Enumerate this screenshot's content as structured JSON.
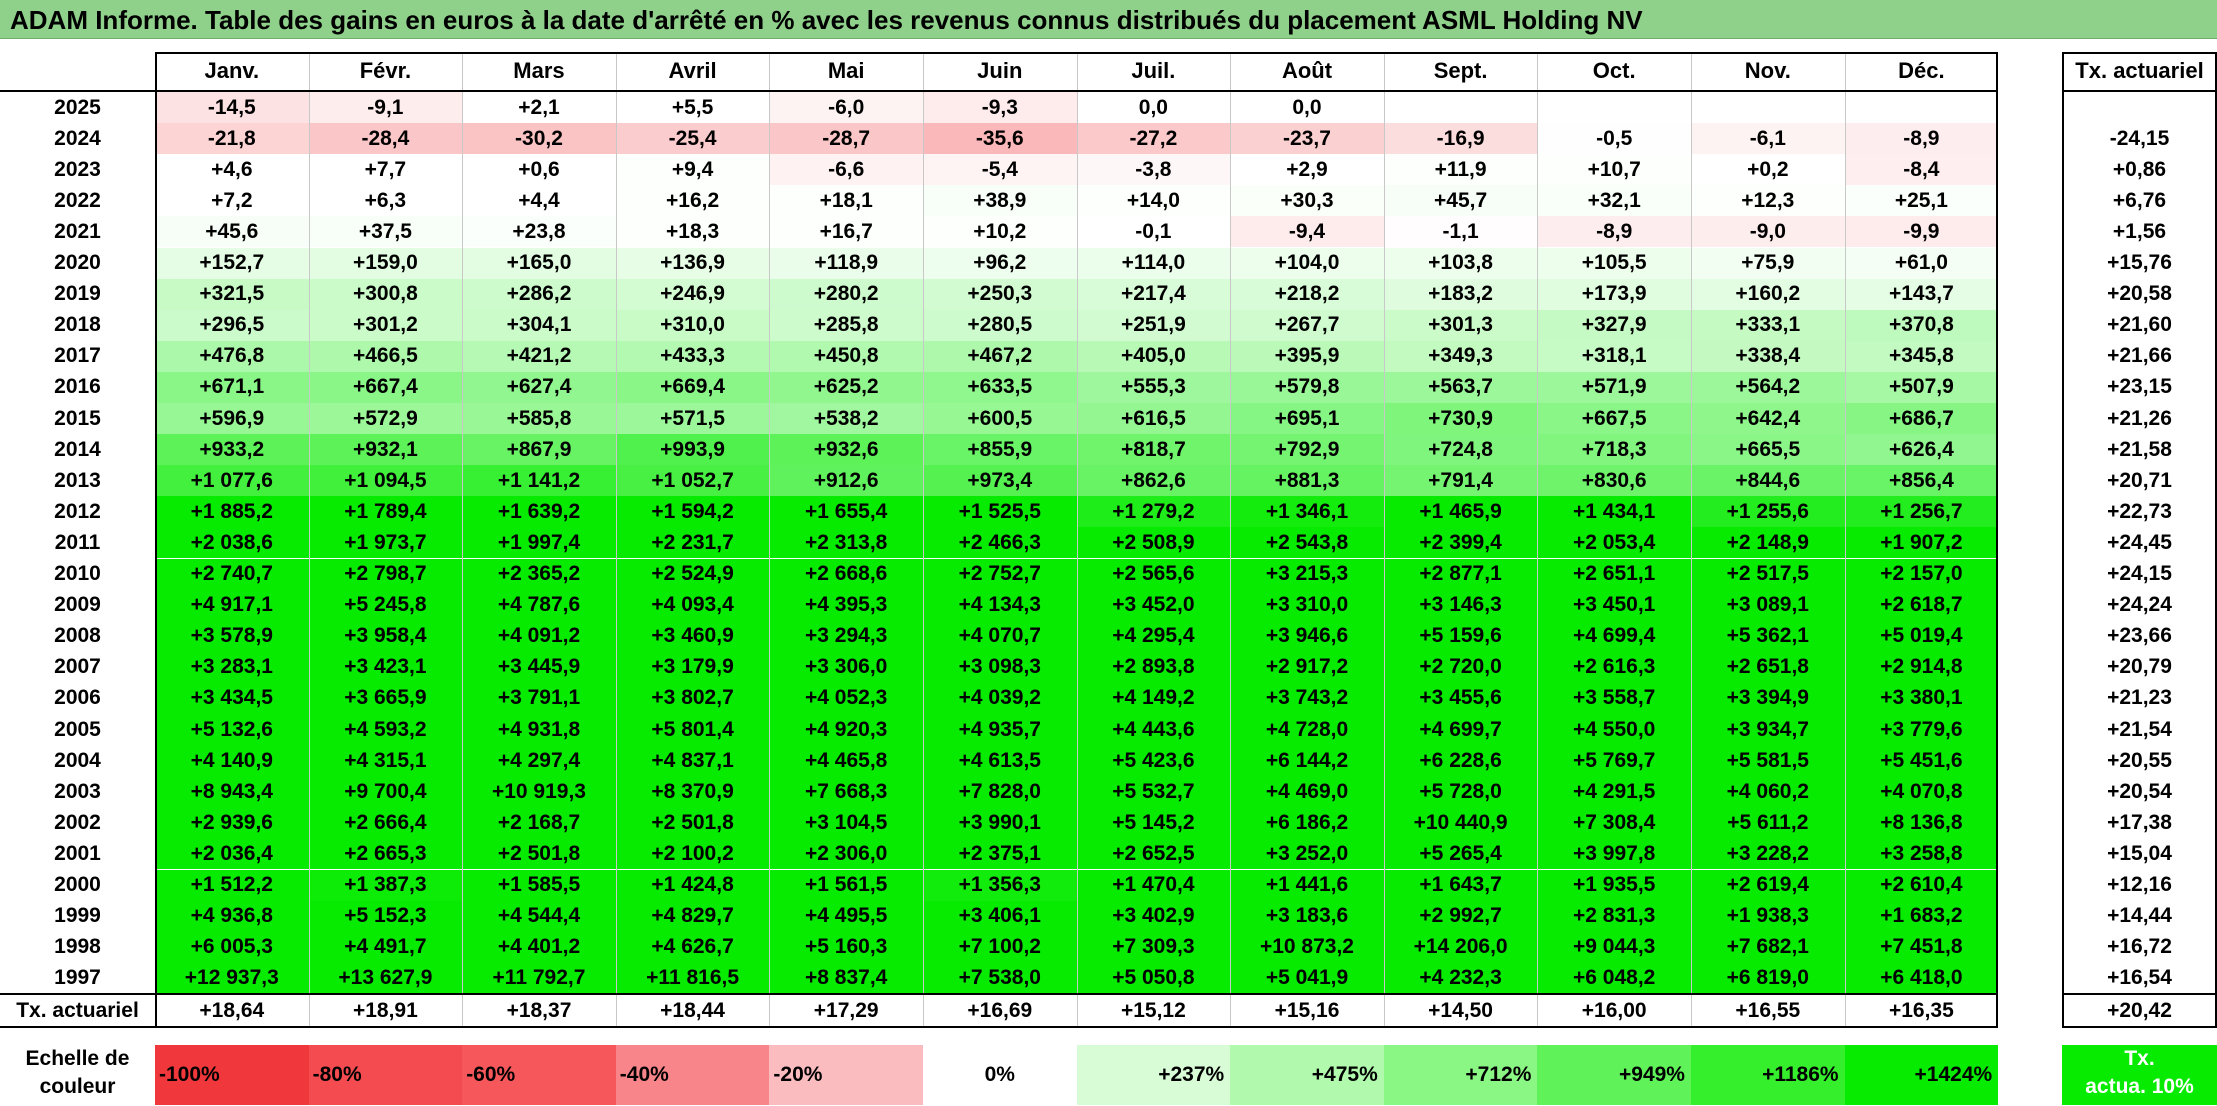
{
  "title": "ADAM Informe. Table des gains en euros à la date d'arrêté en % avec les revenus connus distribués du placement ASML Holding NV",
  "months": [
    "Janv.",
    "Févr.",
    "Mars",
    "Avril",
    "Mai",
    "Juin",
    "Juil.",
    "Août",
    "Sept.",
    "Oct.",
    "Nov.",
    "Déc."
  ],
  "annual_header": "Tx. actuariel",
  "footer_label": "Tx. actuariel",
  "footer_values": [
    "+18,64",
    "+18,91",
    "+18,37",
    "+18,44",
    "+17,29",
    "+16,69",
    "+15,12",
    "+15,16",
    "+14,50",
    "+16,00",
    "+16,55",
    "+16,35"
  ],
  "footer_total": "+20,42",
  "legend": {
    "label_line1": "Echelle de",
    "label_line2": "couleur",
    "items": [
      "-100%",
      "-80%",
      "-60%",
      "-40%",
      "-20%",
      "0%",
      "+237%",
      "+475%",
      "+712%",
      "+949%",
      "+1186%",
      "+1424%"
    ],
    "colors": [
      "#f0383c",
      "#f34b4f",
      "#f5575b",
      "#f88589",
      "#fbbcbf",
      "#ffffff",
      "#d8fcd6",
      "#b1f9ad",
      "#8af684",
      "#5ff259",
      "#35ef2d",
      "#06eb00"
    ],
    "tx_line1": "Tx.",
    "tx_line2": "actua. 10%",
    "tx_color": "#06eb00"
  },
  "chart_data": {
    "type": "heatmap",
    "title": "ADAM Informe. Table des gains en euros à la date d'arrêté en % avec les revenus connus distribués du placement ASML Holding NV",
    "x": [
      "Janv.",
      "Févr.",
      "Mars",
      "Avril",
      "Mai",
      "Juin",
      "Juil.",
      "Août",
      "Sept.",
      "Oct.",
      "Nov.",
      "Déc."
    ],
    "rows": [
      {
        "year": "2025",
        "values": [
          "-14,5",
          "-9,1",
          "+2,1",
          "+5,5",
          "-6,0",
          "-9,3",
          "0,0",
          "0,0",
          "",
          "",
          "",
          ""
        ],
        "tx": ""
      },
      {
        "year": "2024",
        "values": [
          "-21,8",
          "-28,4",
          "-30,2",
          "-25,4",
          "-28,7",
          "-35,6",
          "-27,2",
          "-23,7",
          "-16,9",
          "-0,5",
          "-6,1",
          "-8,9"
        ],
        "tx": "-24,15"
      },
      {
        "year": "2023",
        "values": [
          "+4,6",
          "+7,7",
          "+0,6",
          "+9,4",
          "-6,6",
          "-5,4",
          "-3,8",
          "+2,9",
          "+11,9",
          "+10,7",
          "+0,2",
          "-8,4"
        ],
        "tx": "+0,86"
      },
      {
        "year": "2022",
        "values": [
          "+7,2",
          "+6,3",
          "+4,4",
          "+16,2",
          "+18,1",
          "+38,9",
          "+14,0",
          "+30,3",
          "+45,7",
          "+32,1",
          "+12,3",
          "+25,1"
        ],
        "tx": "+6,76"
      },
      {
        "year": "2021",
        "values": [
          "+45,6",
          "+37,5",
          "+23,8",
          "+18,3",
          "+16,7",
          "+10,2",
          "-0,1",
          "-9,4",
          "-1,1",
          "-8,9",
          "-9,0",
          "-9,9"
        ],
        "tx": "+1,56"
      },
      {
        "year": "2020",
        "values": [
          "+152,7",
          "+159,0",
          "+165,0",
          "+136,9",
          "+118,9",
          "+96,2",
          "+114,0",
          "+104,0",
          "+103,8",
          "+105,5",
          "+75,9",
          "+61,0"
        ],
        "tx": "+15,76"
      },
      {
        "year": "2019",
        "values": [
          "+321,5",
          "+300,8",
          "+286,2",
          "+246,9",
          "+280,2",
          "+250,3",
          "+217,4",
          "+218,2",
          "+183,2",
          "+173,9",
          "+160,2",
          "+143,7"
        ],
        "tx": "+20,58"
      },
      {
        "year": "2018",
        "values": [
          "+296,5",
          "+301,2",
          "+304,1",
          "+310,0",
          "+285,8",
          "+280,5",
          "+251,9",
          "+267,7",
          "+301,3",
          "+327,9",
          "+333,1",
          "+370,8"
        ],
        "tx": "+21,60"
      },
      {
        "year": "2017",
        "values": [
          "+476,8",
          "+466,5",
          "+421,2",
          "+433,3",
          "+450,8",
          "+467,2",
          "+405,0",
          "+395,9",
          "+349,3",
          "+318,1",
          "+338,4",
          "+345,8"
        ],
        "tx": "+21,66"
      },
      {
        "year": "2016",
        "values": [
          "+671,1",
          "+667,4",
          "+627,4",
          "+669,4",
          "+625,2",
          "+633,5",
          "+555,3",
          "+579,8",
          "+563,7",
          "+571,9",
          "+564,2",
          "+507,9"
        ],
        "tx": "+23,15"
      },
      {
        "year": "2015",
        "values": [
          "+596,9",
          "+572,9",
          "+585,8",
          "+571,5",
          "+538,2",
          "+600,5",
          "+616,5",
          "+695,1",
          "+730,9",
          "+667,5",
          "+642,4",
          "+686,7"
        ],
        "tx": "+21,26"
      },
      {
        "year": "2014",
        "values": [
          "+933,2",
          "+932,1",
          "+867,9",
          "+993,9",
          "+932,6",
          "+855,9",
          "+818,7",
          "+792,9",
          "+724,8",
          "+718,3",
          "+665,5",
          "+626,4"
        ],
        "tx": "+21,58"
      },
      {
        "year": "2013",
        "values": [
          "+1 077,6",
          "+1 094,5",
          "+1 141,2",
          "+1 052,7",
          "+912,6",
          "+973,4",
          "+862,6",
          "+881,3",
          "+791,4",
          "+830,6",
          "+844,6",
          "+856,4"
        ],
        "tx": "+20,71"
      },
      {
        "year": "2012",
        "values": [
          "+1 885,2",
          "+1 789,4",
          "+1 639,2",
          "+1 594,2",
          "+1 655,4",
          "+1 525,5",
          "+1 279,2",
          "+1 346,1",
          "+1 465,9",
          "+1 434,1",
          "+1 255,6",
          "+1 256,7"
        ],
        "tx": "+22,73"
      },
      {
        "year": "2011",
        "values": [
          "+2 038,6",
          "+1 973,7",
          "+1 997,4",
          "+2 231,7",
          "+2 313,8",
          "+2 466,3",
          "+2 508,9",
          "+2 543,8",
          "+2 399,4",
          "+2 053,4",
          "+2 148,9",
          "+1 907,2"
        ],
        "tx": "+24,45"
      },
      {
        "year": "2010",
        "values": [
          "+2 740,7",
          "+2 798,7",
          "+2 365,2",
          "+2 524,9",
          "+2 668,6",
          "+2 752,7",
          "+2 565,6",
          "+3 215,3",
          "+2 877,1",
          "+2 651,1",
          "+2 517,5",
          "+2 157,0"
        ],
        "tx": "+24,15"
      },
      {
        "year": "2009",
        "values": [
          "+4 917,1",
          "+5 245,8",
          "+4 787,6",
          "+4 093,4",
          "+4 395,3",
          "+4 134,3",
          "+3 452,0",
          "+3 310,0",
          "+3 146,3",
          "+3 450,1",
          "+3 089,1",
          "+2 618,7"
        ],
        "tx": "+24,24"
      },
      {
        "year": "2008",
        "values": [
          "+3 578,9",
          "+3 958,4",
          "+4 091,2",
          "+3 460,9",
          "+3 294,3",
          "+4 070,7",
          "+4 295,4",
          "+3 946,6",
          "+5 159,6",
          "+4 699,4",
          "+5 362,1",
          "+5 019,4"
        ],
        "tx": "+23,66"
      },
      {
        "year": "2007",
        "values": [
          "+3 283,1",
          "+3 423,1",
          "+3 445,9",
          "+3 179,9",
          "+3 306,0",
          "+3 098,3",
          "+2 893,8",
          "+2 917,2",
          "+2 720,0",
          "+2 616,3",
          "+2 651,8",
          "+2 914,8"
        ],
        "tx": "+20,79"
      },
      {
        "year": "2006",
        "values": [
          "+3 434,5",
          "+3 665,9",
          "+3 791,1",
          "+3 802,7",
          "+4 052,3",
          "+4 039,2",
          "+4 149,2",
          "+3 743,2",
          "+3 455,6",
          "+3 558,7",
          "+3 394,9",
          "+3 380,1"
        ],
        "tx": "+21,23"
      },
      {
        "year": "2005",
        "values": [
          "+5 132,6",
          "+4 593,2",
          "+4 931,8",
          "+5 801,4",
          "+4 920,3",
          "+4 935,7",
          "+4 443,6",
          "+4 728,0",
          "+4 699,7",
          "+4 550,0",
          "+3 934,7",
          "+3 779,6"
        ],
        "tx": "+21,54"
      },
      {
        "year": "2004",
        "values": [
          "+4 140,9",
          "+4 315,1",
          "+4 297,4",
          "+4 837,1",
          "+4 465,8",
          "+4 613,5",
          "+5 423,6",
          "+6 144,2",
          "+6 228,6",
          "+5 769,7",
          "+5 581,5",
          "+5 451,6"
        ],
        "tx": "+20,55"
      },
      {
        "year": "2003",
        "values": [
          "+8 943,4",
          "+9 700,4",
          "+10 919,3",
          "+8 370,9",
          "+7 668,3",
          "+7 828,0",
          "+5 532,7",
          "+4 469,0",
          "+5 728,0",
          "+4 291,5",
          "+4 060,2",
          "+4 070,8"
        ],
        "tx": "+20,54"
      },
      {
        "year": "2002",
        "values": [
          "+2 939,6",
          "+2 666,4",
          "+2 168,7",
          "+2 501,8",
          "+3 104,5",
          "+3 990,1",
          "+5 145,2",
          "+6 186,2",
          "+10 440,9",
          "+7 308,4",
          "+5 611,2",
          "+8 136,8"
        ],
        "tx": "+17,38"
      },
      {
        "year": "2001",
        "values": [
          "+2 036,4",
          "+2 665,3",
          "+2 501,8",
          "+2 100,2",
          "+2 306,0",
          "+2 375,1",
          "+2 652,5",
          "+3 252,0",
          "+5 265,4",
          "+3 997,8",
          "+3 228,2",
          "+3 258,8"
        ],
        "tx": "+15,04"
      },
      {
        "year": "2000",
        "values": [
          "+1 512,2",
          "+1 387,3",
          "+1 585,5",
          "+1 424,8",
          "+1 561,5",
          "+1 356,3",
          "+1 470,4",
          "+1 441,6",
          "+1 643,7",
          "+1 935,5",
          "+2 619,4",
          "+2 610,4"
        ],
        "tx": "+12,16"
      },
      {
        "year": "1999",
        "values": [
          "+4 936,8",
          "+5 152,3",
          "+4 544,4",
          "+4 829,7",
          "+4 495,5",
          "+3 406,1",
          "+3 402,9",
          "+3 183,6",
          "+2 992,7",
          "+2 831,3",
          "+1 938,3",
          "+1 683,2"
        ],
        "tx": "+14,44"
      },
      {
        "year": "1998",
        "values": [
          "+6 005,3",
          "+4 491,7",
          "+4 401,2",
          "+4 626,7",
          "+5 160,3",
          "+7 100,2",
          "+7 309,3",
          "+10 873,2",
          "+14 206,0",
          "+9 044,3",
          "+7 682,1",
          "+7 451,8"
        ],
        "tx": "+16,72"
      },
      {
        "year": "1997",
        "values": [
          "+12 937,3",
          "+13 627,9",
          "+11 792,7",
          "+11 816,5",
          "+8 837,4",
          "+7 538,0",
          "+5 050,8",
          "+5 041,9",
          "+4 232,3",
          "+6 048,2",
          "+6 819,0",
          "+6 418,0"
        ],
        "tx": "+16,54"
      }
    ]
  }
}
